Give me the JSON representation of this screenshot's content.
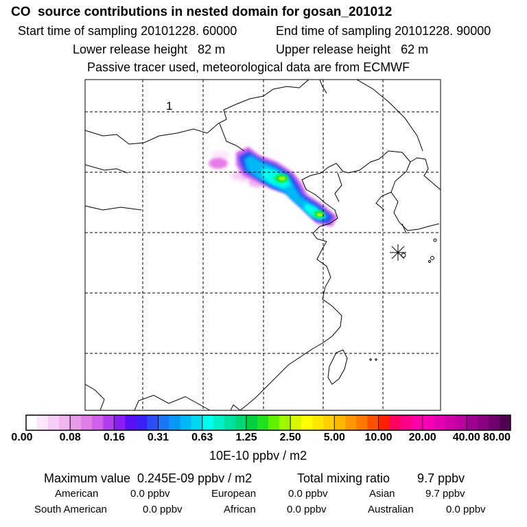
{
  "header": {
    "title": "CO  source contributions in nested domain for gosan_201012",
    "start_time": "Start time of sampling 20101228. 60000",
    "end_time": "End time of sampling 20101228. 90000",
    "lower_release": "Lower release height   82 m",
    "upper_release": "Upper release height   62 m",
    "tracer_note": "Passive tracer used, meteorological data are from ECMWF"
  },
  "map": {
    "panel_label": "1",
    "receptor_marker": "receptor-star"
  },
  "colorbar": {
    "labels": [
      "0.00",
      "0.08",
      "0.16",
      "0.31",
      "0.63",
      "1.25",
      "2.50",
      "5.00",
      "10.00",
      "20.00",
      "40.00",
      "80.00"
    ],
    "colors": [
      "#ffffff",
      "#fbe6fb",
      "#f6cdf6",
      "#f0b4f0",
      "#e79be9",
      "#de7fe6",
      "#d060ea",
      "#b23ef0",
      "#8a1ef5",
      "#5a10f5",
      "#3a20f5",
      "#2a50f5",
      "#1a78f5",
      "#0a98f5",
      "#00b8f5",
      "#00d8f2",
      "#00ffee",
      "#00f0c8",
      "#00e0a0",
      "#00d878",
      "#00d040",
      "#20e020",
      "#60f000",
      "#a0f800",
      "#d8f800",
      "#ffff00",
      "#ffe800",
      "#ffd000",
      "#ffb800",
      "#ff9800",
      "#ff7800",
      "#ff5000",
      "#ff2000",
      "#ff0060",
      "#ff0088",
      "#ff00a8",
      "#f800b8",
      "#e400b0",
      "#d000a8",
      "#bc00a0",
      "#a00090",
      "#880080",
      "#700070",
      "#500050"
    ],
    "unit": "10E-10 ppbv / m2"
  },
  "footer": {
    "max_value": "Maximum value  0.245E-09 ppbv / m2",
    "total_mixing": "Total mixing ratio        9.7 ppbv",
    "american_label": "American",
    "american_value": "0.0 ppbv",
    "european_label": "European",
    "european_value": "0.0 ppbv",
    "asian_label": "Asian",
    "asian_value": "9.7 ppbv",
    "south_american_label": "South American",
    "south_american_value": "0.0 ppbv",
    "african_label": "African",
    "african_value": "0.0 ppbv",
    "australian_label": "Australian",
    "australian_value": "0.0 ppbv"
  }
}
